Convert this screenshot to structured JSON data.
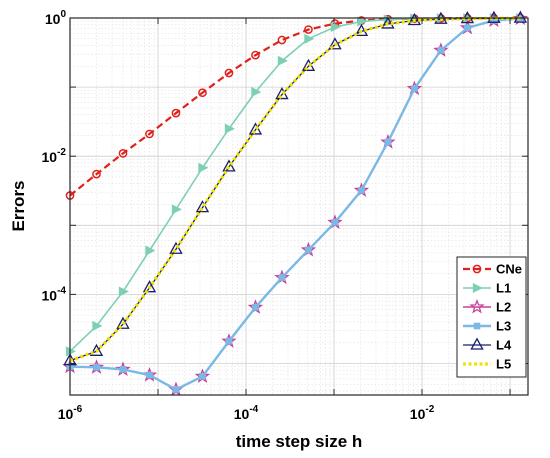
{
  "chart_data": {
    "type": "line",
    "xlabel": "time step size h",
    "ylabel": "Errors",
    "xscale": "log",
    "yscale": "log",
    "xlim": [
      1e-06,
      0.16
    ],
    "ylim": [
      3.5e-06,
      1
    ],
    "grid": true,
    "legend_position": "bottom-right",
    "x_ticks": [
      {
        "value": 1e-06,
        "base": "10",
        "exp": "-6"
      },
      {
        "value": 0.0001,
        "base": "10",
        "exp": "-4"
      },
      {
        "value": 0.01,
        "base": "10",
        "exp": "-2"
      }
    ],
    "y_ticks": [
      {
        "value": 1,
        "label": "10",
        "exp": "0"
      },
      {
        "value": 0.01,
        "label": "10",
        "exp": "-2"
      },
      {
        "value": 0.0001,
        "label": "10",
        "exp": "-4"
      }
    ],
    "series": [
      {
        "name": "CNe",
        "color": "#e0201b",
        "linestyle": "dashed",
        "marker": "circle",
        "width": 2.2,
        "x": [
          1e-06,
          2e-06,
          4e-06,
          8e-06,
          1.6e-05,
          3.2e-05,
          6.4e-05,
          0.000128,
          0.000256,
          0.000512,
          0.001024,
          0.002048,
          0.004096,
          0.008192,
          0.016384,
          0.032768,
          0.065536,
          0.131072
        ],
        "y": [
          0.0027,
          0.0055,
          0.011,
          0.021,
          0.042,
          0.083,
          0.16,
          0.29,
          0.48,
          0.68,
          0.83,
          0.92,
          0.96,
          0.98,
          0.99,
          0.995,
          0.998,
          0.999
        ]
      },
      {
        "name": "L1",
        "color": "#7dcfb6",
        "linestyle": "solid",
        "marker": "triangle-right",
        "width": 1.6,
        "x": [
          1e-06,
          2e-06,
          4e-06,
          8e-06,
          1.6e-05,
          3.2e-05,
          6.4e-05,
          0.000128,
          0.000256,
          0.000512,
          0.001024,
          0.002048,
          0.004096,
          0.008192,
          0.016384,
          0.032768,
          0.065536,
          0.131072
        ],
        "y": [
          1.5e-05,
          3.5e-05,
          0.00011,
          0.00043,
          0.0017,
          0.0068,
          0.025,
          0.085,
          0.24,
          0.5,
          0.74,
          0.89,
          0.95,
          0.98,
          0.99,
          0.995,
          0.998,
          0.999
        ]
      },
      {
        "name": "L2",
        "color": "#c8409c",
        "linestyle": "solid",
        "marker": "star",
        "width": 1.4,
        "x": [
          1e-06,
          2e-06,
          4e-06,
          8e-06,
          1.6e-05,
          3.2e-05,
          6.4e-05,
          0.000128,
          0.000256,
          0.000512,
          0.001024,
          0.002048,
          0.004096,
          0.008192,
          0.016384,
          0.032768,
          0.065536,
          0.131072
        ],
        "y": [
          9e-06,
          8.8e-06,
          8.2e-06,
          6.8e-06,
          4.2e-06,
          6.5e-06,
          2.1e-05,
          6.5e-05,
          0.000175,
          0.00044,
          0.0011,
          0.0032,
          0.016,
          0.095,
          0.34,
          0.72,
          0.92,
          0.985
        ]
      },
      {
        "name": "L3",
        "color": "#7ab8e6",
        "linestyle": "solid",
        "marker": "square",
        "width": 2.4,
        "x": [
          1e-06,
          2e-06,
          4e-06,
          8e-06,
          1.6e-05,
          3.2e-05,
          6.4e-05,
          0.000128,
          0.000256,
          0.000512,
          0.001024,
          0.002048,
          0.004096,
          0.008192,
          0.016384,
          0.032768,
          0.065536,
          0.131072
        ],
        "y": [
          9e-06,
          8.8e-06,
          8.2e-06,
          6.8e-06,
          4.2e-06,
          6.5e-06,
          2.1e-05,
          6.5e-05,
          0.000175,
          0.00044,
          0.0011,
          0.0032,
          0.016,
          0.095,
          0.34,
          0.72,
          0.92,
          0.985
        ]
      },
      {
        "name": "L4",
        "color": "#1a1f6b",
        "linestyle": "solid",
        "marker": "triangle-up",
        "width": 1.3,
        "x": [
          1e-06,
          2e-06,
          4e-06,
          8e-06,
          1.6e-05,
          3.2e-05,
          6.4e-05,
          0.000128,
          0.000256,
          0.000512,
          0.001024,
          0.002048,
          0.004096,
          0.008192,
          0.016384,
          0.032768,
          0.065536,
          0.131072
        ],
        "y": [
          1.1e-05,
          1.5e-05,
          3.7e-05,
          0.000125,
          0.00045,
          0.0018,
          0.007,
          0.024,
          0.078,
          0.2,
          0.41,
          0.64,
          0.82,
          0.92,
          0.96,
          0.98,
          0.99,
          0.995
        ]
      },
      {
        "name": "L5",
        "color": "#f2e200",
        "linestyle": "dotted",
        "marker": "none",
        "width": 3.2,
        "x": [
          1e-06,
          2e-06,
          4e-06,
          8e-06,
          1.6e-05,
          3.2e-05,
          6.4e-05,
          0.000128,
          0.000256,
          0.000512,
          0.001024,
          0.002048,
          0.004096,
          0.008192,
          0.016384,
          0.032768,
          0.065536,
          0.131072
        ],
        "y": [
          1.1e-05,
          1.5e-05,
          3.7e-05,
          0.000125,
          0.00045,
          0.0018,
          0.007,
          0.024,
          0.078,
          0.2,
          0.41,
          0.64,
          0.82,
          0.92,
          0.96,
          0.98,
          0.99,
          0.995
        ]
      }
    ]
  }
}
